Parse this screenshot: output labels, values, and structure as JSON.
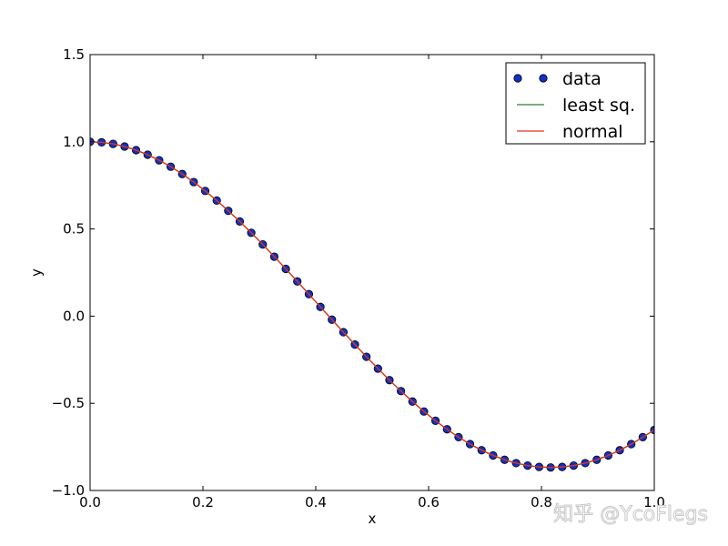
{
  "chart_data": {
    "type": "line",
    "title": "",
    "xlabel": "x",
    "ylabel": "y",
    "xlim": [
      0.0,
      1.0
    ],
    "ylim": [
      -1.0,
      1.5
    ],
    "xticks": [
      0.0,
      0.2,
      0.4,
      0.6,
      0.8,
      1.0
    ],
    "xtick_labels": [
      "0.0",
      "0.2",
      "0.4",
      "0.6",
      "0.8",
      "1.0"
    ],
    "yticks": [
      -1.0,
      -0.5,
      0.0,
      0.5,
      1.0,
      1.5
    ],
    "ytick_labels": [
      "−1.0",
      "−0.5",
      "0.0",
      "0.5",
      "1.0",
      "1.5"
    ],
    "grid": false,
    "legend_position": "top-right",
    "x": [
      0.0,
      0.0204,
      0.0408,
      0.0612,
      0.0816,
      0.102,
      0.1224,
      0.1429,
      0.1633,
      0.1837,
      0.2041,
      0.2245,
      0.2449,
      0.2653,
      0.2857,
      0.3061,
      0.3265,
      0.3469,
      0.3673,
      0.3878,
      0.4082,
      0.4286,
      0.449,
      0.4694,
      0.4898,
      0.5102,
      0.5306,
      0.551,
      0.5714,
      0.5918,
      0.6122,
      0.6327,
      0.6531,
      0.6735,
      0.6939,
      0.7143,
      0.7347,
      0.7551,
      0.7755,
      0.7959,
      0.8163,
      0.8367,
      0.8571,
      0.8776,
      0.898,
      0.9184,
      0.9388,
      0.9592,
      0.9796,
      1.0
    ],
    "series": [
      {
        "name": "data",
        "style": "markers",
        "color": "#1030c8",
        "edge_color": "#000000",
        "y": [
          1.0,
          0.997,
          0.988,
          0.973,
          0.952,
          0.926,
          0.894,
          0.857,
          0.815,
          0.769,
          0.718,
          0.663,
          0.604,
          0.543,
          0.478,
          0.411,
          0.341,
          0.271,
          0.199,
          0.126,
          0.053,
          -0.02,
          -0.092,
          -0.163,
          -0.233,
          -0.301,
          -0.367,
          -0.43,
          -0.49,
          -0.547,
          -0.6,
          -0.649,
          -0.694,
          -0.734,
          -0.769,
          -0.799,
          -0.824,
          -0.843,
          -0.857,
          -0.865,
          -0.868,
          -0.865,
          -0.857,
          -0.843,
          -0.824,
          -0.799,
          -0.769,
          -0.734,
          -0.694,
          -0.653
        ]
      },
      {
        "name": "least sq.",
        "style": "line",
        "color": "#2e7d2e",
        "y": [
          1.0,
          0.997,
          0.988,
          0.973,
          0.952,
          0.926,
          0.894,
          0.857,
          0.815,
          0.769,
          0.718,
          0.663,
          0.604,
          0.543,
          0.478,
          0.411,
          0.341,
          0.271,
          0.199,
          0.126,
          0.053,
          -0.02,
          -0.092,
          -0.163,
          -0.233,
          -0.301,
          -0.367,
          -0.43,
          -0.49,
          -0.547,
          -0.6,
          -0.649,
          -0.694,
          -0.734,
          -0.769,
          -0.799,
          -0.824,
          -0.843,
          -0.857,
          -0.865,
          -0.868,
          -0.865,
          -0.857,
          -0.843,
          -0.824,
          -0.799,
          -0.769,
          -0.734,
          -0.694,
          -0.653
        ]
      },
      {
        "name": "normal",
        "style": "line",
        "color": "#e0301e",
        "y": [
          1.0,
          0.997,
          0.988,
          0.973,
          0.952,
          0.926,
          0.894,
          0.857,
          0.815,
          0.769,
          0.718,
          0.663,
          0.604,
          0.543,
          0.478,
          0.411,
          0.341,
          0.271,
          0.199,
          0.126,
          0.053,
          -0.02,
          -0.092,
          -0.163,
          -0.233,
          -0.301,
          -0.367,
          -0.43,
          -0.49,
          -0.547,
          -0.6,
          -0.649,
          -0.694,
          -0.734,
          -0.769,
          -0.799,
          -0.824,
          -0.843,
          -0.857,
          -0.865,
          -0.868,
          -0.865,
          -0.857,
          -0.843,
          -0.824,
          -0.799,
          -0.769,
          -0.734,
          -0.694,
          -0.653
        ]
      }
    ]
  },
  "watermark": "知乎 @YcoFlegs"
}
